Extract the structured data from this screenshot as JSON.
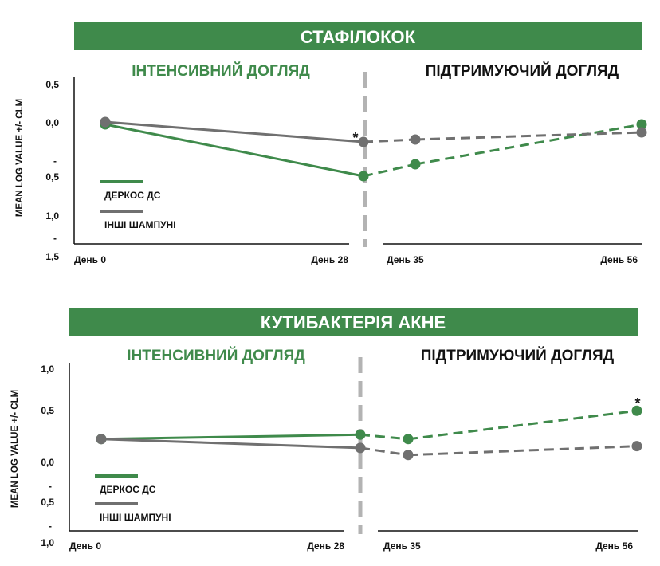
{
  "colors": {
    "green": "#3f8a4b",
    "gray": "#707070",
    "divider": "#b3b3b3",
    "banner": "#3f8a4b"
  },
  "chart_data": [
    {
      "type": "line",
      "title": "СТАФІЛОКОК",
      "ylabel": "MEAN LOG VALUE +/- CLM",
      "yticks": [
        "0,5",
        "0,0",
        "-",
        "0,5",
        "1,0",
        "-",
        "1,5"
      ],
      "x": [
        "День 0",
        "День 28",
        "День 35",
        "День 56"
      ],
      "phases": [
        "ІНТЕНСИВНИЙ ДОГЛЯД",
        "ПІДТРИМУЮЧИЙ ДОГЛЯД"
      ],
      "ylim": [
        -1.5,
        0.5
      ],
      "series": [
        {
          "name": "ДЕРКОС ДС",
          "color": "green",
          "values": [
            0.0,
            -0.65,
            -0.5,
            0.0
          ]
        },
        {
          "name": "ІНШІ ШАМПУНІ",
          "color": "gray",
          "values": [
            0.03,
            -0.22,
            -0.19,
            -0.1
          ]
        }
      ],
      "annotations": [
        {
          "text": "*",
          "x_index": 1
        }
      ],
      "grid": false,
      "legend": "bottom-left"
    },
    {
      "type": "line",
      "title": "КУТИБАКТЕРІЯ АКНЕ",
      "ylabel": "MEAN LOG VALUE +/- CLM",
      "yticks": [
        "1,0",
        "0,5",
        "0,0",
        "-",
        "0,5",
        "-",
        "1,0"
      ],
      "x": [
        "День 0",
        "День 28",
        "День 35",
        "День 56"
      ],
      "phases": [
        "ІНТЕНСИВНИЙ ДОГЛЯД",
        "ПІДТРИМУЮЧИЙ ДОГЛЯД"
      ],
      "ylim": [
        -1.0,
        1.0
      ],
      "series": [
        {
          "name": "ДЕРКОС ДС",
          "color": "green",
          "values": [
            0.2,
            0.25,
            0.2,
            0.52
          ]
        },
        {
          "name": "ІНШІ ШАМПУНІ",
          "color": "gray",
          "values": [
            0.2,
            0.1,
            0.02,
            0.12
          ]
        }
      ],
      "annotations": [
        {
          "text": "*",
          "x_index": 3
        }
      ],
      "grid": false,
      "legend": "bottom-left"
    }
  ]
}
